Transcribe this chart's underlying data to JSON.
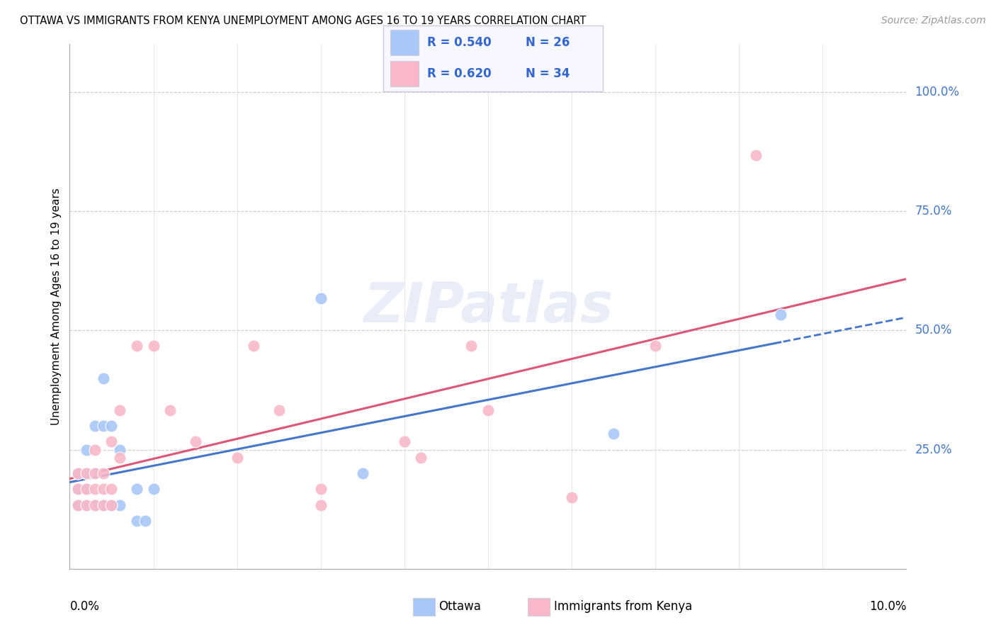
{
  "title": "OTTAWA VS IMMIGRANTS FROM KENYA UNEMPLOYMENT AMONG AGES 16 TO 19 YEARS CORRELATION CHART",
  "source": "Source: ZipAtlas.com",
  "ylabel": "Unemployment Among Ages 16 to 19 years",
  "watermark": "ZIPatlas",
  "ottawa_color": "#a8c8f8",
  "kenya_color": "#f8b8c8",
  "ottawa_line_color": "#4477cc",
  "kenya_line_color": "#dd5577",
  "right_tick_color": "#4477cc",
  "legend_face_color": "#f7f8ff",
  "legend_edge_color": "#ccccdd",
  "legend_text_color": "#3366cc",
  "ottawa_R": 0.54,
  "ottawa_N": 26,
  "kenya_R": 0.62,
  "kenya_N": 34,
  "ottawa_scatter": [
    [
      0.001,
      0.167
    ],
    [
      0.001,
      0.133
    ],
    [
      0.001,
      0.2
    ],
    [
      0.002,
      0.2
    ],
    [
      0.002,
      0.167
    ],
    [
      0.002,
      0.133
    ],
    [
      0.002,
      0.25
    ],
    [
      0.003,
      0.2
    ],
    [
      0.003,
      0.133
    ],
    [
      0.003,
      0.3
    ],
    [
      0.003,
      0.133
    ],
    [
      0.004,
      0.4
    ],
    [
      0.004,
      0.133
    ],
    [
      0.004,
      0.3
    ],
    [
      0.005,
      0.133
    ],
    [
      0.005,
      0.3
    ],
    [
      0.006,
      0.25
    ],
    [
      0.006,
      0.133
    ],
    [
      0.008,
      0.167
    ],
    [
      0.008,
      0.1
    ],
    [
      0.009,
      0.1
    ],
    [
      0.01,
      0.167
    ],
    [
      0.03,
      0.567
    ],
    [
      0.035,
      0.2
    ],
    [
      0.065,
      0.283
    ],
    [
      0.085,
      0.533
    ]
  ],
  "kenya_scatter": [
    [
      0.001,
      0.133
    ],
    [
      0.001,
      0.167
    ],
    [
      0.001,
      0.2
    ],
    [
      0.002,
      0.133
    ],
    [
      0.002,
      0.2
    ],
    [
      0.002,
      0.167
    ],
    [
      0.003,
      0.133
    ],
    [
      0.003,
      0.2
    ],
    [
      0.003,
      0.167
    ],
    [
      0.003,
      0.25
    ],
    [
      0.004,
      0.167
    ],
    [
      0.004,
      0.133
    ],
    [
      0.004,
      0.2
    ],
    [
      0.005,
      0.167
    ],
    [
      0.005,
      0.267
    ],
    [
      0.005,
      0.133
    ],
    [
      0.006,
      0.333
    ],
    [
      0.006,
      0.233
    ],
    [
      0.008,
      0.467
    ],
    [
      0.01,
      0.467
    ],
    [
      0.012,
      0.333
    ],
    [
      0.015,
      0.267
    ],
    [
      0.02,
      0.233
    ],
    [
      0.022,
      0.467
    ],
    [
      0.025,
      0.333
    ],
    [
      0.03,
      0.167
    ],
    [
      0.03,
      0.133
    ],
    [
      0.04,
      0.267
    ],
    [
      0.042,
      0.233
    ],
    [
      0.048,
      0.467
    ],
    [
      0.05,
      0.333
    ],
    [
      0.06,
      0.15
    ],
    [
      0.07,
      0.467
    ],
    [
      0.082,
      0.867
    ]
  ],
  "xmin": 0.0,
  "xmax": 0.1,
  "ymin": 0.0,
  "ymax": 1.1,
  "ytick_values": [
    0.25,
    0.5,
    0.75,
    1.0
  ],
  "ytick_labels": [
    "25.0%",
    "50.0%",
    "75.0%",
    "100.0%"
  ]
}
